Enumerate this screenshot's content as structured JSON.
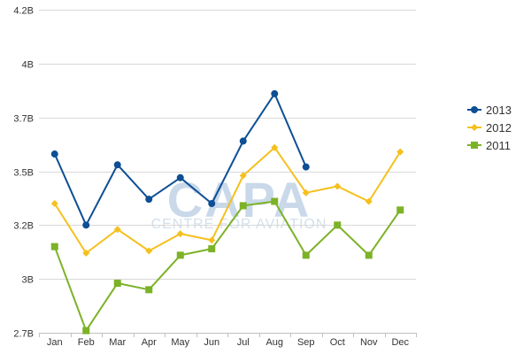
{
  "chart_data": {
    "type": "line",
    "categories": [
      "Jan",
      "Feb",
      "Mar",
      "Apr",
      "May",
      "Jun",
      "Jul",
      "Aug",
      "Sep",
      "Oct",
      "Nov",
      "Dec"
    ],
    "y_ticks": [
      {
        "value": 2.7,
        "label": "2.7B"
      },
      {
        "value": 2.95,
        "label": "3B"
      },
      {
        "value": 3.2,
        "label": "3.2B"
      },
      {
        "value": 3.45,
        "label": "3.5B"
      },
      {
        "value": 3.7,
        "label": "3.7B"
      },
      {
        "value": 3.95,
        "label": "4B"
      },
      {
        "value": 4.2,
        "label": "4.2B"
      }
    ],
    "ylim": [
      2.7,
      4.2
    ],
    "grid": true,
    "legend_position": "right",
    "series": [
      {
        "name": "2013",
        "color": "#0d4f94",
        "marker": "circle",
        "values": [
          3.53,
          3.2,
          3.48,
          3.32,
          3.42,
          3.3,
          3.59,
          3.81,
          3.47,
          null,
          null,
          null
        ]
      },
      {
        "name": "2012",
        "color": "#f5c01d",
        "marker": "diamond",
        "values": [
          3.3,
          3.07,
          3.18,
          3.08,
          3.16,
          3.13,
          3.43,
          3.56,
          3.35,
          3.38,
          3.31,
          3.54
        ]
      },
      {
        "name": "2011",
        "color": "#7cb227",
        "marker": "square",
        "values": [
          3.1,
          2.71,
          2.93,
          2.9,
          3.06,
          3.09,
          3.29,
          3.31,
          3.06,
          3.2,
          3.06,
          3.27
        ]
      }
    ]
  },
  "watermark": {
    "logo": "CAPA",
    "tagline": "CENTRE FOR AVIATION"
  }
}
